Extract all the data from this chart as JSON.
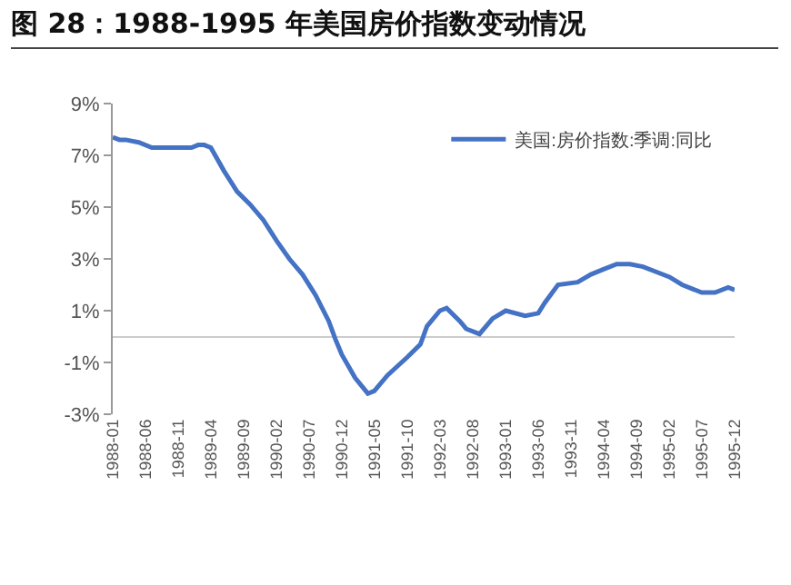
{
  "chart_data": {
    "type": "line",
    "title": "图 28：1988-1995 年美国房价指数变动情况",
    "x": [
      "1988-01",
      "1988-02",
      "1988-03",
      "1988-05",
      "1988-07",
      "1988-09",
      "1988-11",
      "1989-01",
      "1989-02",
      "1989-03",
      "1989-04",
      "1989-06",
      "1989-08",
      "1989-10",
      "1989-12",
      "1990-02",
      "1990-04",
      "1990-06",
      "1990-08",
      "1990-10",
      "1990-11",
      "1990-12",
      "1991-02",
      "1991-04",
      "1991-05",
      "1991-07",
      "1991-10",
      "1991-12",
      "1992-01",
      "1992-03",
      "1992-04",
      "1992-06",
      "1992-07",
      "1992-09",
      "1992-11",
      "1993-01",
      "1993-04",
      "1993-06",
      "1993-07",
      "1993-09",
      "1993-12",
      "1994-02",
      "1994-04",
      "1994-06",
      "1994-08",
      "1994-10",
      "1994-12",
      "1995-02",
      "1995-04",
      "1995-07",
      "1995-09",
      "1995-11",
      "1995-12"
    ],
    "series": [
      {
        "name": "美国:房价指数:季调:同比",
        "color": "#4472c4",
        "values": [
          7.7,
          7.6,
          7.6,
          7.5,
          7.3,
          7.3,
          7.3,
          7.3,
          7.4,
          7.4,
          7.3,
          6.4,
          5.6,
          5.1,
          4.5,
          3.7,
          3.0,
          2.4,
          1.6,
          0.6,
          -0.1,
          -0.7,
          -1.6,
          -2.2,
          -2.1,
          -1.5,
          -0.8,
          -0.3,
          0.4,
          1.0,
          1.1,
          0.6,
          0.3,
          0.1,
          0.7,
          1.0,
          0.8,
          0.9,
          1.3,
          2.0,
          2.1,
          2.4,
          2.6,
          2.8,
          2.8,
          2.7,
          2.5,
          2.3,
          2.0,
          1.7,
          1.7,
          1.9,
          1.8
        ]
      }
    ],
    "xlim": [
      "1988-01",
      "1995-12"
    ],
    "xticks": [
      "1988-01",
      "1988-06",
      "1988-11",
      "1989-04",
      "1989-09",
      "1990-02",
      "1990-07",
      "1990-12",
      "1991-05",
      "1991-10",
      "1992-03",
      "1992-08",
      "1993-01",
      "1993-06",
      "1993-11",
      "1994-04",
      "1994-09",
      "1995-02",
      "1995-07",
      "1995-12"
    ],
    "ylim": [
      -3,
      9
    ],
    "yticks": [
      {
        "value": -3,
        "label": "-3%"
      },
      {
        "value": -1,
        "label": "-1%"
      },
      {
        "value": 1,
        "label": "1%"
      },
      {
        "value": 3,
        "label": "3%"
      },
      {
        "value": 5,
        "label": "5%"
      },
      {
        "value": 7,
        "label": "7%"
      },
      {
        "value": 9,
        "label": "9%"
      }
    ],
    "grid": false,
    "legend": "top right",
    "marker": "none",
    "line_style": "solid"
  }
}
